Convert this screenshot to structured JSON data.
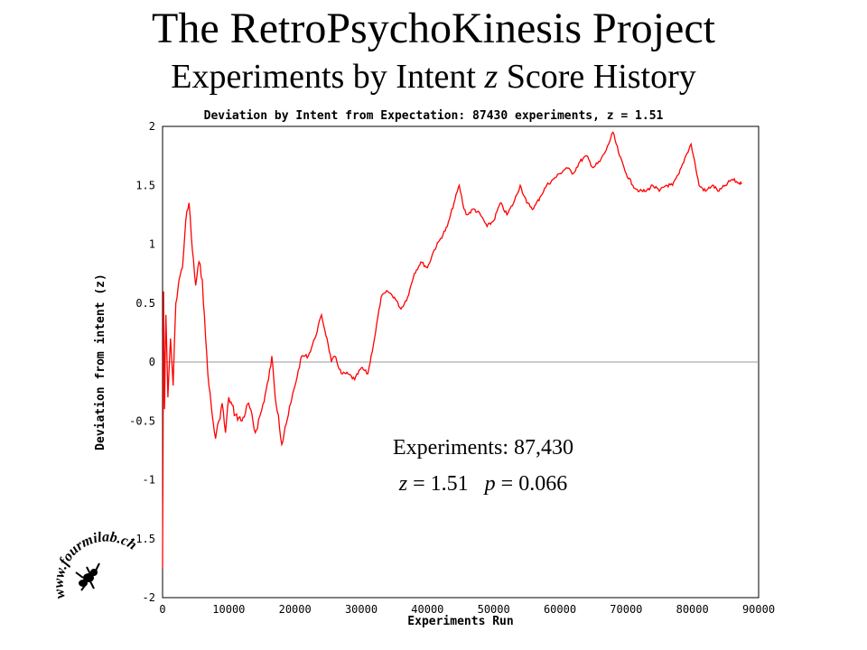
{
  "header": {
    "title": "The RetroPsychoKinesis Project",
    "subtitle_pre": "Experiments by Intent ",
    "subtitle_z": "z",
    "subtitle_post": " Score History"
  },
  "logo": {
    "text": "www.fourmilab.ch"
  },
  "annotation": {
    "line1": "Experiments: 87,430",
    "z_label": "z",
    "z_value": " = 1.51",
    "p_label": "p",
    "p_value": " = 0.066"
  },
  "chart_data": {
    "type": "line",
    "title": "Deviation by Intent from Expectation: 87430 experiments, z = 1.51",
    "xlabel": "Experiments Run",
    "ylabel": "Deviation from intent (z)",
    "xlim": [
      0,
      90000
    ],
    "ylim": [
      -2,
      2
    ],
    "xticks": [
      "0",
      "10000",
      "20000",
      "30000",
      "40000",
      "50000",
      "60000",
      "70000",
      "80000",
      "90000"
    ],
    "yticks": [
      "2",
      "1.5",
      "1",
      "0.5",
      "0",
      "-0.5",
      "-1",
      "-1.5",
      "-2"
    ],
    "reference_line_y": 0,
    "grid": false,
    "series_color": "#ff0000",
    "series": [
      {
        "x": [
          0,
          150,
          300,
          500,
          800,
          1200,
          1600,
          2000,
          2500,
          3000,
          3500,
          4000,
          4500,
          5000,
          5500,
          6000,
          6500,
          7000,
          7500,
          8000,
          8500,
          9000,
          9500,
          10000,
          11000,
          12000,
          13000,
          14000,
          15000,
          16000,
          16500,
          17000,
          17500,
          18000,
          18500,
          19000,
          20000,
          21000,
          22000,
          23000,
          24000,
          25000,
          25500,
          26000,
          27000,
          28000,
          29000,
          30000,
          31000,
          32000,
          33000,
          34000,
          35000,
          36000,
          37000,
          38000,
          39000,
          40000,
          41000,
          42000,
          43000,
          44000,
          44800,
          45500,
          46000,
          47000,
          48000,
          49000,
          50000,
          51000,
          52000,
          53000,
          54000,
          55000,
          56000,
          57000,
          58000,
          59000,
          60000,
          61000,
          62000,
          63000,
          64000,
          65000,
          66000,
          67000,
          68000,
          69000,
          70000,
          71000,
          72000,
          73000,
          74000,
          75000,
          76000,
          77000,
          78000,
          79000,
          79800,
          80500,
          81000,
          82000,
          83000,
          84000,
          85000,
          86000,
          87000,
          87430
        ],
        "y": [
          -1.75,
          0.6,
          -0.4,
          0.4,
          -0.3,
          0.2,
          -0.2,
          0.5,
          0.7,
          0.8,
          1.2,
          1.35,
          0.95,
          0.65,
          0.85,
          0.7,
          0.2,
          -0.2,
          -0.45,
          -0.65,
          -0.5,
          -0.35,
          -0.6,
          -0.3,
          -0.45,
          -0.5,
          -0.35,
          -0.6,
          -0.4,
          -0.15,
          0.05,
          -0.3,
          -0.45,
          -0.7,
          -0.55,
          -0.45,
          -0.2,
          0.05,
          0.05,
          0.2,
          0.4,
          0.15,
          0.0,
          0.05,
          -0.1,
          -0.1,
          -0.15,
          -0.05,
          -0.1,
          0.2,
          0.55,
          0.6,
          0.55,
          0.45,
          0.55,
          0.75,
          0.85,
          0.8,
          0.95,
          1.05,
          1.15,
          1.35,
          1.5,
          1.3,
          1.25,
          1.3,
          1.25,
          1.15,
          1.2,
          1.35,
          1.25,
          1.35,
          1.5,
          1.35,
          1.3,
          1.4,
          1.5,
          1.55,
          1.6,
          1.65,
          1.6,
          1.7,
          1.75,
          1.65,
          1.7,
          1.8,
          1.95,
          1.75,
          1.6,
          1.5,
          1.45,
          1.45,
          1.5,
          1.45,
          1.5,
          1.5,
          1.6,
          1.75,
          1.85,
          1.65,
          1.5,
          1.45,
          1.5,
          1.45,
          1.5,
          1.55,
          1.52,
          1.51
        ]
      }
    ]
  }
}
